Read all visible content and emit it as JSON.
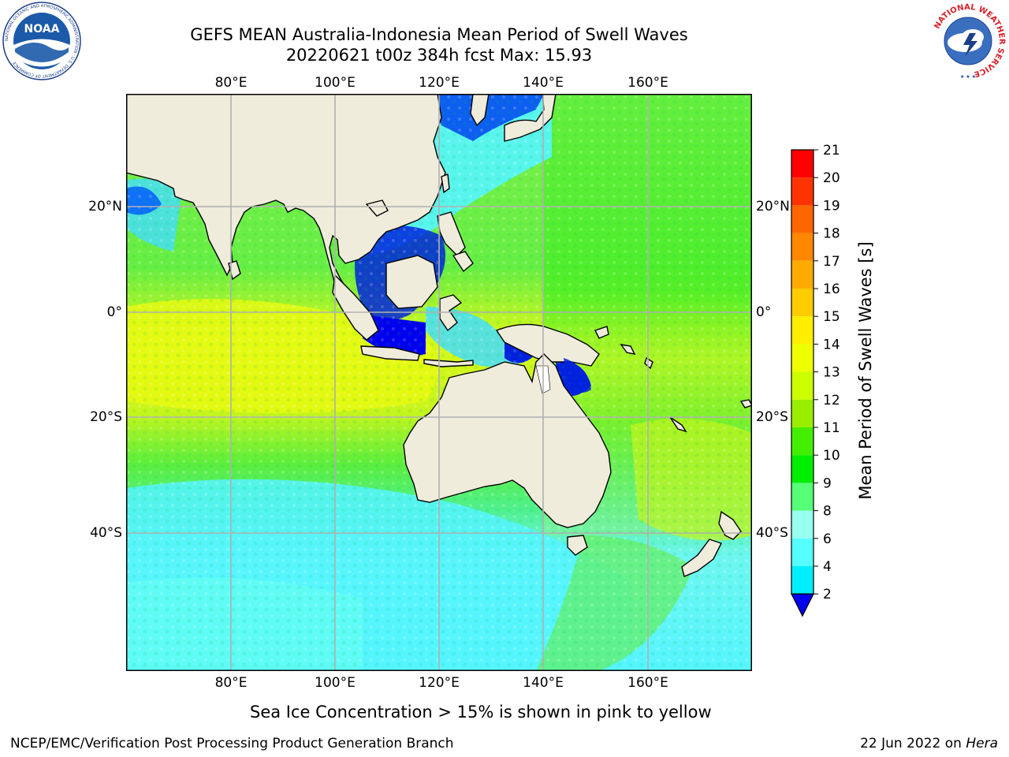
{
  "title": {
    "line1": "GEFS MEAN Australia-Indonesia Mean Period of Swell Waves",
    "line2": "20220621 t00z 384h fcst   Max: 15.93"
  },
  "map": {
    "lon_ticks": [
      "80°E",
      "100°E",
      "120°E",
      "140°E",
      "160°E"
    ],
    "lat_ticks": [
      "20°N",
      "0°",
      "20°S",
      "40°S"
    ],
    "lon_range": [
      60,
      180
    ],
    "lat_range": [
      -68,
      40
    ],
    "land_color": "#efecdc",
    "grid_color": "#b0b0b0"
  },
  "colorbar": {
    "label": "Mean Period of Swell Waves [s]",
    "ticks": [
      "21",
      "20",
      "19",
      "18",
      "17",
      "16",
      "15",
      "14",
      "13",
      "12",
      "11",
      "10",
      "9",
      "8",
      "6",
      "4",
      "2"
    ],
    "colors": [
      "#ff0000",
      "#ff3300",
      "#ff6600",
      "#ff8800",
      "#ffaa00",
      "#ffcc00",
      "#ffee00",
      "#eeff00",
      "#ccff00",
      "#99ee00",
      "#44ee00",
      "#00ee00",
      "#55ff77",
      "#99ffee",
      "#55ffff",
      "#00eeff",
      "#0088ff",
      "#0000ee"
    ]
  },
  "note": "Sea Ice Concentration > 15% is shown in pink to yellow",
  "footer": {
    "left": "NCEP/EMC/Verification Post Processing Product Generation Branch",
    "date": "22 Jun 2022 on ",
    "host": "Hera"
  },
  "logos": {
    "noaa": "NOAA",
    "noaa_ring": "NATIONAL OCEANIC AND ATMOSPHERIC ADMINISTRATION · U.S. DEPARTMENT OF COMMERCE",
    "nws_ring": "NATIONAL WEATHER SERVICE"
  }
}
